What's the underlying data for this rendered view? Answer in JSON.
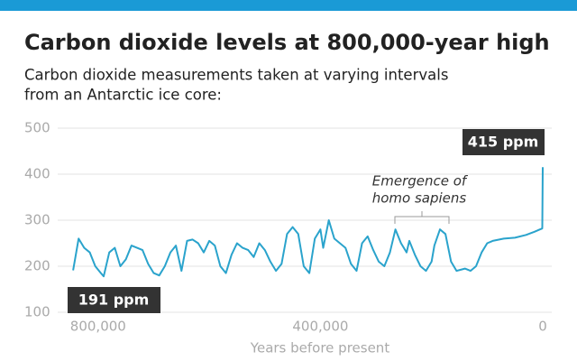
{
  "chart_data": {
    "type": "line",
    "title": "Carbon dioxide levels at 800,000-year high",
    "subtitle": [
      "Carbon dioxide measurements taken at varying intervals",
      "from an Antarctic ice core:"
    ],
    "x_label": "Years before present",
    "annotations": [
      "415 ppm",
      "191 ppm",
      "Emergence of",
      "homo sapiens"
    ],
    "xlim": [
      850000,
      0
    ],
    "xticks": [
      {
        "value": 800000,
        "label": "800,000"
      },
      {
        "value": 400000,
        "label": "400,000"
      },
      0
    ],
    "ylim": [
      100,
      500
    ],
    "yticks": [
      100,
      200,
      300,
      400,
      500
    ],
    "grid": true,
    "series": [
      {
        "name": "CO2",
        "color": "#2aa3cc",
        "x": [
          845000,
          835000,
          825000,
          815000,
          805000,
          795000,
          790000,
          780000,
          770000,
          760000,
          750000,
          740000,
          730000,
          720000,
          710000,
          700000,
          690000,
          680000,
          670000,
          660000,
          650000,
          640000,
          630000,
          620000,
          610000,
          600000,
          590000,
          580000,
          570000,
          560000,
          550000,
          540000,
          530000,
          520000,
          510000,
          500000,
          490000,
          480000,
          470000,
          460000,
          450000,
          440000,
          430000,
          420000,
          410000,
          400000,
          395000,
          385000,
          375000,
          365000,
          355000,
          345000,
          335000,
          325000,
          315000,
          305000,
          295000,
          285000,
          275000,
          265000,
          255000,
          245000,
          240000,
          230000,
          220000,
          210000,
          200000,
          195000,
          185000,
          175000,
          165000,
          155000,
          140000,
          130000,
          120000,
          110000,
          100000,
          90000,
          70000,
          50000,
          30000,
          15000,
          5000,
          1000,
          800,
          0
        ],
        "values": [
          191,
          260,
          240,
          230,
          200,
          185,
          178,
          230,
          240,
          200,
          215,
          245,
          240,
          235,
          205,
          185,
          180,
          200,
          230,
          245,
          190,
          255,
          258,
          250,
          230,
          255,
          245,
          200,
          185,
          225,
          250,
          240,
          235,
          220,
          250,
          235,
          210,
          190,
          205,
          270,
          285,
          270,
          200,
          185,
          260,
          280,
          240,
          300,
          260,
          250,
          240,
          205,
          190,
          250,
          265,
          235,
          210,
          200,
          230,
          280,
          250,
          230,
          255,
          225,
          200,
          190,
          210,
          245,
          280,
          270,
          210,
          190,
          195,
          190,
          200,
          230,
          250,
          255,
          260,
          262,
          268,
          275,
          280,
          282,
          285,
          415
        ]
      }
    ]
  }
}
